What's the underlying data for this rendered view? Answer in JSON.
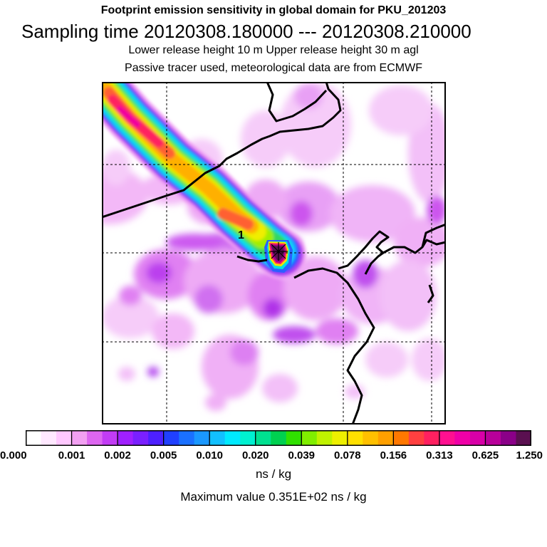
{
  "header": {
    "title": "Footprint emission sensitivity in global domain for PKU_201203",
    "sampling": "Sampling time   20120308.180000 --- 20120308.210000",
    "release": "Lower release height   10 m          Upper release height   30 m    agl",
    "tracer": "Passive tracer used, meteorological data are from ECMWF"
  },
  "map": {
    "marker_label": "1",
    "receptor_icon": "star-cross-icon"
  },
  "colorbar": {
    "tick_labels": [
      "0.000",
      "0.001",
      "0.002",
      "0.005",
      "0.010",
      "0.020",
      "0.039",
      "0.078",
      "0.156",
      "0.313",
      "0.625",
      "1.250"
    ],
    "colors": [
      "#ffffff",
      "#ffe8ff",
      "#ffc8ff",
      "#f2a0f2",
      "#dd66f0",
      "#c23cf5",
      "#a020ff",
      "#7a20ff",
      "#4d20ff",
      "#2040ff",
      "#1a70ff",
      "#1a98ff",
      "#12c0ff",
      "#00eaff",
      "#00f0d0",
      "#00e090",
      "#00d050",
      "#30e000",
      "#80ee00",
      "#c0f200",
      "#eef000",
      "#ffe000",
      "#ffc000",
      "#ffa000",
      "#ff7800",
      "#ff4040",
      "#ff2060",
      "#ff1090",
      "#f000a8",
      "#d800a8",
      "#b8009a",
      "#8a0088",
      "#5a1050"
    ],
    "units": "ns / kg",
    "max_label": "Maximum value  0.351E+02 ns / kg"
  }
}
